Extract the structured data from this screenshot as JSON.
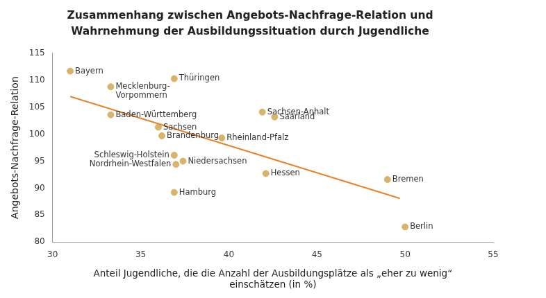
{
  "chart_data": {
    "type": "scatter",
    "title": [
      "Zusammenhang zwischen Angebots-Nachfrage-Relation und",
      "Wahrnehmung der Ausbildungssituation durch Jugendliche"
    ],
    "x_label": [
      "Anteil Jugendliche, die die Anzahl der Ausbildungsplätze als „eher zu wenig“",
      "einschätzen (in %)"
    ],
    "y_label": "Angebots-Nachfrage-Relation",
    "point_labels": [
      "Bayern",
      "Mecklenburg-\nVorpommern",
      "Thüringen",
      "Baden-Württemberg",
      "Sachsen",
      "Brandenburg",
      "Rheinland-Pfalz",
      "Sachsen-Anhalt",
      "Saarland",
      "Schleswig-Holstein",
      "Niedersachsen",
      "Nordrhein-Westfalen",
      "Hessen",
      "Hamburg",
      "Bremen",
      "Berlin"
    ],
    "x": [
      31.0,
      33.3,
      36.9,
      33.3,
      36.0,
      36.2,
      39.6,
      41.9,
      42.6,
      36.9,
      37.4,
      37.0,
      42.1,
      36.9,
      49.0,
      50.0
    ],
    "values": [
      111.7,
      108.8,
      110.3,
      103.6,
      101.3,
      99.7,
      99.3,
      104.1,
      103.2,
      96.1,
      95.0,
      94.4,
      92.7,
      89.2,
      91.6,
      82.8
    ],
    "color": "#d6b46c",
    "trend_line": {
      "x": [
        31.0,
        49.7
      ],
      "values": [
        107.0,
        88.1
      ],
      "color": "#e8822a"
    },
    "xlim": [
      30,
      55
    ],
    "xticks": [
      30,
      35,
      40,
      45,
      50,
      55
    ],
    "ylim": [
      80,
      115
    ],
    "yticks": [
      80,
      85,
      90,
      95,
      100,
      105,
      110,
      115
    ],
    "grid": false
  }
}
